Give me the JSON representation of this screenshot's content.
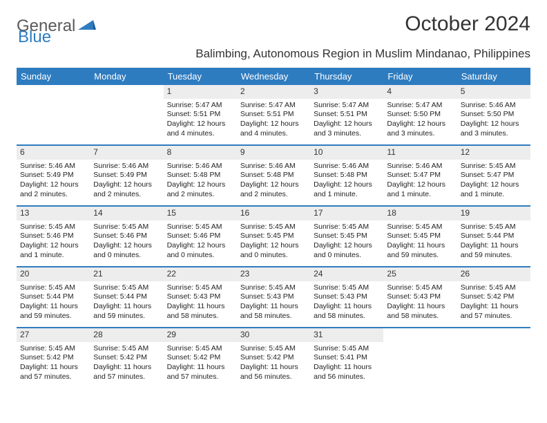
{
  "logo": {
    "word1": "General",
    "word2": "Blue"
  },
  "title": "October 2024",
  "subtitle": "Balimbing, Autonomous Region in Muslim Mindanao, Philippines",
  "colors": {
    "header_bg": "#2e7cc0",
    "header_text": "#ffffff",
    "daynum_bg": "#ededed",
    "border": "#2e7cc0",
    "text": "#222222"
  },
  "weekdays": [
    "Sunday",
    "Monday",
    "Tuesday",
    "Wednesday",
    "Thursday",
    "Friday",
    "Saturday"
  ],
  "weeks": [
    [
      {
        "n": "",
        "sr": "",
        "ss": "",
        "dl": ""
      },
      {
        "n": "",
        "sr": "",
        "ss": "",
        "dl": ""
      },
      {
        "n": "1",
        "sr": "Sunrise: 5:47 AM",
        "ss": "Sunset: 5:51 PM",
        "dl": "Daylight: 12 hours and 4 minutes."
      },
      {
        "n": "2",
        "sr": "Sunrise: 5:47 AM",
        "ss": "Sunset: 5:51 PM",
        "dl": "Daylight: 12 hours and 4 minutes."
      },
      {
        "n": "3",
        "sr": "Sunrise: 5:47 AM",
        "ss": "Sunset: 5:51 PM",
        "dl": "Daylight: 12 hours and 3 minutes."
      },
      {
        "n": "4",
        "sr": "Sunrise: 5:47 AM",
        "ss": "Sunset: 5:50 PM",
        "dl": "Daylight: 12 hours and 3 minutes."
      },
      {
        "n": "5",
        "sr": "Sunrise: 5:46 AM",
        "ss": "Sunset: 5:50 PM",
        "dl": "Daylight: 12 hours and 3 minutes."
      }
    ],
    [
      {
        "n": "6",
        "sr": "Sunrise: 5:46 AM",
        "ss": "Sunset: 5:49 PM",
        "dl": "Daylight: 12 hours and 2 minutes."
      },
      {
        "n": "7",
        "sr": "Sunrise: 5:46 AM",
        "ss": "Sunset: 5:49 PM",
        "dl": "Daylight: 12 hours and 2 minutes."
      },
      {
        "n": "8",
        "sr": "Sunrise: 5:46 AM",
        "ss": "Sunset: 5:48 PM",
        "dl": "Daylight: 12 hours and 2 minutes."
      },
      {
        "n": "9",
        "sr": "Sunrise: 5:46 AM",
        "ss": "Sunset: 5:48 PM",
        "dl": "Daylight: 12 hours and 2 minutes."
      },
      {
        "n": "10",
        "sr": "Sunrise: 5:46 AM",
        "ss": "Sunset: 5:48 PM",
        "dl": "Daylight: 12 hours and 1 minute."
      },
      {
        "n": "11",
        "sr": "Sunrise: 5:46 AM",
        "ss": "Sunset: 5:47 PM",
        "dl": "Daylight: 12 hours and 1 minute."
      },
      {
        "n": "12",
        "sr": "Sunrise: 5:45 AM",
        "ss": "Sunset: 5:47 PM",
        "dl": "Daylight: 12 hours and 1 minute."
      }
    ],
    [
      {
        "n": "13",
        "sr": "Sunrise: 5:45 AM",
        "ss": "Sunset: 5:46 PM",
        "dl": "Daylight: 12 hours and 1 minute."
      },
      {
        "n": "14",
        "sr": "Sunrise: 5:45 AM",
        "ss": "Sunset: 5:46 PM",
        "dl": "Daylight: 12 hours and 0 minutes."
      },
      {
        "n": "15",
        "sr": "Sunrise: 5:45 AM",
        "ss": "Sunset: 5:46 PM",
        "dl": "Daylight: 12 hours and 0 minutes."
      },
      {
        "n": "16",
        "sr": "Sunrise: 5:45 AM",
        "ss": "Sunset: 5:45 PM",
        "dl": "Daylight: 12 hours and 0 minutes."
      },
      {
        "n": "17",
        "sr": "Sunrise: 5:45 AM",
        "ss": "Sunset: 5:45 PM",
        "dl": "Daylight: 12 hours and 0 minutes."
      },
      {
        "n": "18",
        "sr": "Sunrise: 5:45 AM",
        "ss": "Sunset: 5:45 PM",
        "dl": "Daylight: 11 hours and 59 minutes."
      },
      {
        "n": "19",
        "sr": "Sunrise: 5:45 AM",
        "ss": "Sunset: 5:44 PM",
        "dl": "Daylight: 11 hours and 59 minutes."
      }
    ],
    [
      {
        "n": "20",
        "sr": "Sunrise: 5:45 AM",
        "ss": "Sunset: 5:44 PM",
        "dl": "Daylight: 11 hours and 59 minutes."
      },
      {
        "n": "21",
        "sr": "Sunrise: 5:45 AM",
        "ss": "Sunset: 5:44 PM",
        "dl": "Daylight: 11 hours and 59 minutes."
      },
      {
        "n": "22",
        "sr": "Sunrise: 5:45 AM",
        "ss": "Sunset: 5:43 PM",
        "dl": "Daylight: 11 hours and 58 minutes."
      },
      {
        "n": "23",
        "sr": "Sunrise: 5:45 AM",
        "ss": "Sunset: 5:43 PM",
        "dl": "Daylight: 11 hours and 58 minutes."
      },
      {
        "n": "24",
        "sr": "Sunrise: 5:45 AM",
        "ss": "Sunset: 5:43 PM",
        "dl": "Daylight: 11 hours and 58 minutes."
      },
      {
        "n": "25",
        "sr": "Sunrise: 5:45 AM",
        "ss": "Sunset: 5:43 PM",
        "dl": "Daylight: 11 hours and 58 minutes."
      },
      {
        "n": "26",
        "sr": "Sunrise: 5:45 AM",
        "ss": "Sunset: 5:42 PM",
        "dl": "Daylight: 11 hours and 57 minutes."
      }
    ],
    [
      {
        "n": "27",
        "sr": "Sunrise: 5:45 AM",
        "ss": "Sunset: 5:42 PM",
        "dl": "Daylight: 11 hours and 57 minutes."
      },
      {
        "n": "28",
        "sr": "Sunrise: 5:45 AM",
        "ss": "Sunset: 5:42 PM",
        "dl": "Daylight: 11 hours and 57 minutes."
      },
      {
        "n": "29",
        "sr": "Sunrise: 5:45 AM",
        "ss": "Sunset: 5:42 PM",
        "dl": "Daylight: 11 hours and 57 minutes."
      },
      {
        "n": "30",
        "sr": "Sunrise: 5:45 AM",
        "ss": "Sunset: 5:42 PM",
        "dl": "Daylight: 11 hours and 56 minutes."
      },
      {
        "n": "31",
        "sr": "Sunrise: 5:45 AM",
        "ss": "Sunset: 5:41 PM",
        "dl": "Daylight: 11 hours and 56 minutes."
      },
      {
        "n": "",
        "sr": "",
        "ss": "",
        "dl": ""
      },
      {
        "n": "",
        "sr": "",
        "ss": "",
        "dl": ""
      }
    ]
  ]
}
